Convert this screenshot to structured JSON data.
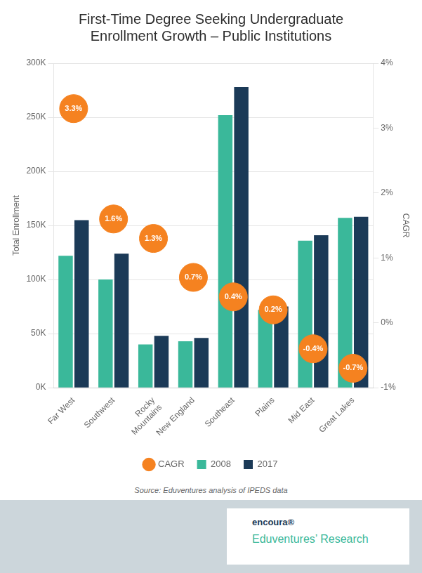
{
  "chart_data": {
    "type": "bar",
    "title": "First-Time Degree Seeking Undergraduate\nEnrollment Growth – Public Institutions",
    "categories": [
      "Far West",
      "Southwest",
      "Rocky\n Mountains",
      "New England",
      "Southeast",
      "Plains",
      "Mid East",
      "Great Lakes"
    ],
    "series": [
      {
        "name": "2008",
        "color": "#3ab89a",
        "values": [
          122000,
          100000,
          40000,
          43000,
          252000,
          72000,
          136000,
          157000
        ]
      },
      {
        "name": "2017",
        "color": "#1b3a57",
        "values": [
          155000,
          124000,
          48000,
          46000,
          278000,
          75000,
          141000,
          158000
        ]
      },
      {
        "name": "CAGR",
        "type": "scatter",
        "axis": "y2",
        "color": "#f58220",
        "marker": "circle",
        "values": [
          3.3,
          1.6,
          1.3,
          0.7,
          0.4,
          0.2,
          -0.4,
          -0.7
        ],
        "value_labels": [
          "3.3%",
          "1.6%",
          "1.3%",
          "0.7%",
          "0.4%",
          "0.2%",
          "-0.4%",
          "-0.7%"
        ],
        "data_labels": true
      }
    ],
    "ylabel": "Total Enrollment",
    "y2label": "CAGR",
    "ylim": [
      0,
      300000
    ],
    "yticks": [
      {
        "value": 0,
        "label": "0K"
      },
      {
        "value": 50000,
        "label": "50K"
      },
      {
        "value": 100000,
        "label": "100K"
      },
      {
        "value": 150000,
        "label": "150K"
      },
      {
        "value": 200000,
        "label": "200K"
      },
      {
        "value": 250000,
        "label": "250K"
      },
      {
        "value": 300000,
        "label": "300K"
      }
    ],
    "y2lim": [
      -1,
      4
    ],
    "y2ticks": [
      {
        "value": -1,
        "label": "-1%"
      },
      {
        "value": 0,
        "label": "0%"
      },
      {
        "value": 1,
        "label": "1%"
      },
      {
        "value": 2,
        "label": "2%"
      },
      {
        "value": 3,
        "label": "3%"
      },
      {
        "value": 4,
        "label": "4%"
      }
    ],
    "grid": true,
    "legend": "bottom",
    "annotations": [
      "Source: Eduventures analysis of IPEDS data",
      "encoura®",
      "Eduventures’ Research"
    ]
  }
}
